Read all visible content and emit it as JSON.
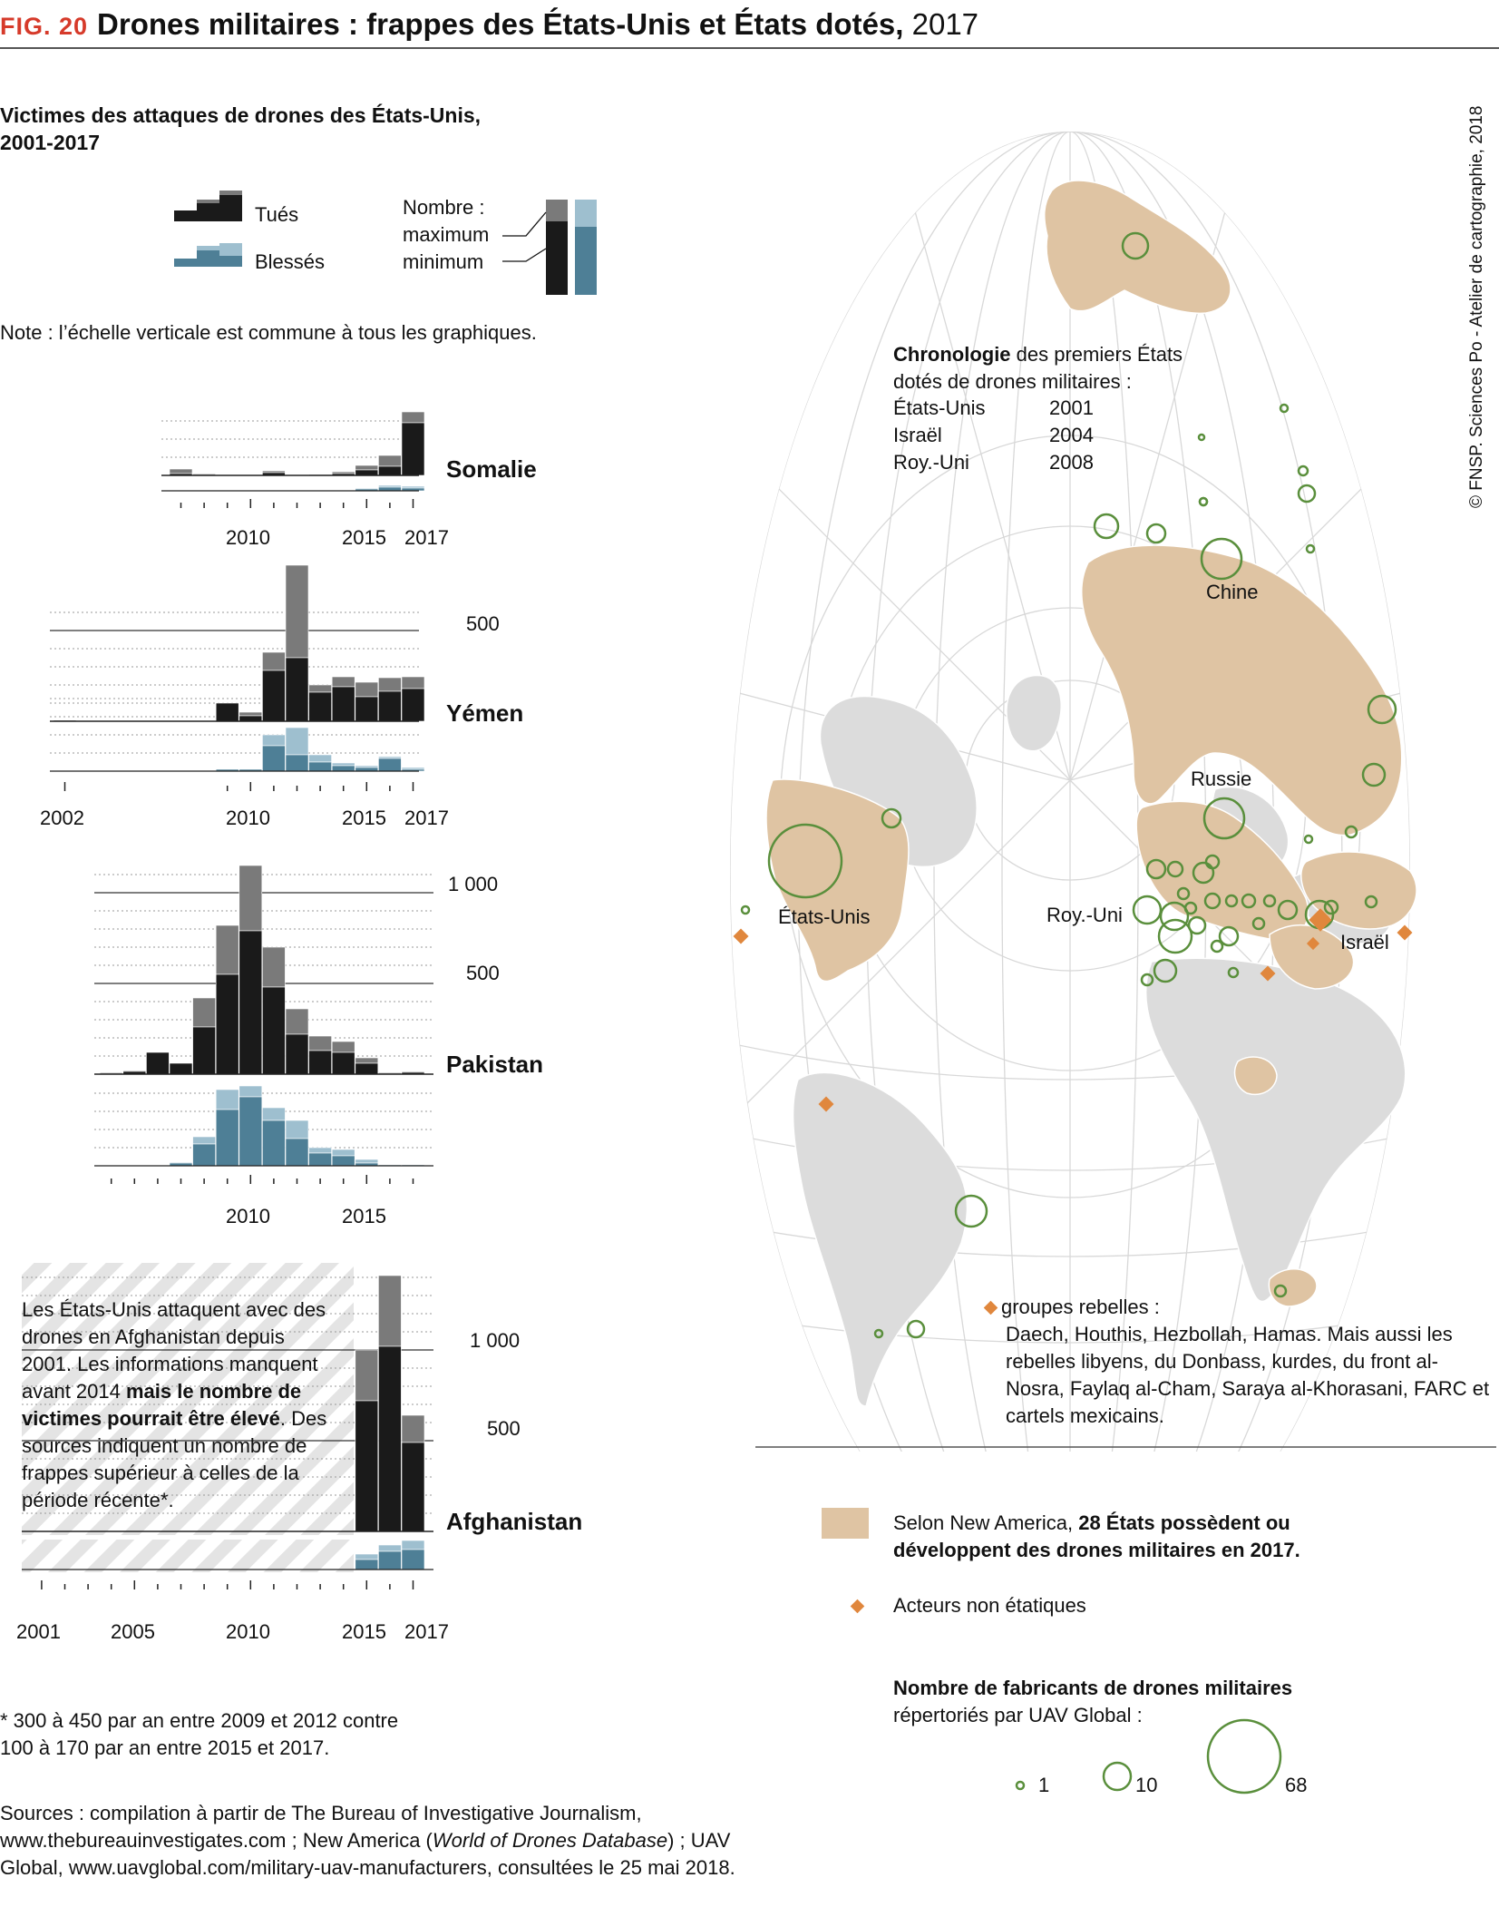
{
  "header": {
    "fig": "FIG. 20",
    "title": "Drones militaires : frappes des États-Unis et États dotés,",
    "year": "2017"
  },
  "credit": "© FNSP. Sciences Po - Atelier de cartographie, 2018",
  "left_panel": {
    "subtitle": "Victimes des attaques de drones des États-Unis, 2001-2017",
    "legend": {
      "killed": "Tués",
      "injured": "Blessés",
      "count_label": "Nombre :",
      "max_label": "maximum",
      "min_label": "minimum"
    },
    "note": "Note : l’échelle verticale est commune à tous les graphiques.",
    "afghanistan_text_1": "Les États-Unis attaquent avec des drones en Afghanistan depuis 2001. Les informations manquent avant 2014 ",
    "afghanistan_text_bold": "mais le nombre de victimes pourrait être élevé",
    "afghanistan_text_2": ". Des sources indiquent un nombre de frappes supérieur à celles de la période récente*.",
    "footnote": "* 300 à 450 par an entre 2009 et 2012 contre 100 à 170 par an entre 2015 et 2017.",
    "sources_1": "Sources : compilation à partir de The Bureau of Investigative Journalism, www.thebureauinvestigates.com ; New America (",
    "sources_italic": "World of Drones Database",
    "sources_2": ") ; UAV Global, www.uavglobal.com/military-uav-manufacturers, consultées le 25 mai 2018."
  },
  "chart_data": [
    {
      "type": "bar",
      "subtype": "stacked-range",
      "country": "Somalie",
      "x": [
        2007,
        2008,
        2009,
        2010,
        2011,
        2012,
        2013,
        2014,
        2015,
        2016,
        2017
      ],
      "killed_min": [
        10,
        5,
        0,
        0,
        15,
        0,
        0,
        10,
        30,
        50,
        290
      ],
      "killed_max": [
        35,
        10,
        0,
        0,
        25,
        0,
        5,
        20,
        55,
        110,
        350
      ],
      "injured_min": [
        0,
        0,
        0,
        0,
        0,
        0,
        0,
        0,
        10,
        20,
        15
      ],
      "injured_max": [
        0,
        0,
        0,
        0,
        0,
        0,
        0,
        0,
        15,
        30,
        25
      ],
      "tick_labels": [
        "2010",
        "2015",
        "2017"
      ]
    },
    {
      "type": "bar",
      "subtype": "stacked-range",
      "country": "Yémen",
      "x": [
        2002,
        2003,
        2004,
        2005,
        2006,
        2007,
        2008,
        2009,
        2010,
        2011,
        2012,
        2013,
        2014,
        2015,
        2016,
        2017
      ],
      "killed_min": [
        5,
        0,
        0,
        0,
        0,
        0,
        0,
        100,
        30,
        280,
        350,
        160,
        190,
        135,
        165,
        180
      ],
      "killed_max": [
        6,
        0,
        0,
        0,
        0,
        0,
        0,
        100,
        50,
        380,
        860,
        200,
        245,
        215,
        240,
        245
      ],
      "injured_min": [
        0,
        0,
        0,
        0,
        0,
        0,
        0,
        10,
        10,
        140,
        90,
        50,
        30,
        20,
        70,
        10
      ],
      "injured_max": [
        0,
        0,
        0,
        0,
        0,
        0,
        0,
        10,
        10,
        200,
        240,
        90,
        45,
        30,
        80,
        20
      ],
      "tick_labels": [
        "2002",
        "2010",
        "2015",
        "2017"
      ],
      "y_tick_labels": [
        "500"
      ]
    },
    {
      "type": "bar",
      "subtype": "stacked-range",
      "country": "Pakistan",
      "x": [
        2004,
        2005,
        2006,
        2007,
        2008,
        2009,
        2010,
        2011,
        2012,
        2013,
        2014,
        2015,
        2016,
        2017
      ],
      "killed_min": [
        5,
        15,
        120,
        60,
        260,
        550,
        790,
        480,
        220,
        130,
        120,
        60,
        5,
        10
      ],
      "killed_max": [
        10,
        20,
        120,
        60,
        420,
        820,
        1150,
        700,
        360,
        210,
        180,
        90,
        10,
        15
      ],
      "injured_min": [
        0,
        0,
        0,
        15,
        120,
        310,
        380,
        250,
        150,
        70,
        55,
        15,
        5,
        5
      ],
      "injured_max": [
        0,
        0,
        0,
        20,
        160,
        420,
        440,
        320,
        250,
        100,
        90,
        35,
        5,
        5
      ],
      "tick_labels": [
        "2010",
        "2015"
      ],
      "y_tick_labels": [
        "1 000",
        "500"
      ]
    },
    {
      "type": "bar",
      "subtype": "stacked-range",
      "country": "Afghanistan",
      "x": [
        2015,
        2016,
        2017
      ],
      "killed_min": [
        720,
        1020,
        490
      ],
      "killed_max": [
        1000,
        1410,
        640
      ],
      "injured_min": [
        55,
        100,
        110
      ],
      "injured_max": [
        85,
        135,
        160
      ],
      "tick_labels": [
        "2001",
        "2005",
        "2010",
        "2015",
        "2017"
      ],
      "y_tick_labels": [
        "1 000",
        "500"
      ]
    }
  ],
  "map": {
    "chronology_bold": "Chronologie",
    "chronology_rest": " des premiers États dotés de drones militaires :",
    "chronology": [
      {
        "country": "États-Unis",
        "year": "2001"
      },
      {
        "country": "Israël",
        "year": "2004"
      },
      {
        "country": "Roy.-Uni",
        "year": "2008"
      }
    ],
    "labels": [
      "Chine",
      "Russie",
      "États-Unis",
      "Roy.-Uni",
      "Israël"
    ],
    "rebels_head": "groupes rebelles :",
    "rebels_body": "Daech, Houthis, Hezbollah, Hamas. Mais aussi les rebelles libyens, du Donbass, kurdes, du front al-Nosra, Faylaq al-Cham, Saraya al-Khorasani, FARC et cartels mexicains.",
    "colors": {
      "owner": "#dfc4a3",
      "land": "#dcdcdc",
      "circle": "#5a8f3c",
      "rebel": "#e0873d"
    }
  },
  "legend_right": {
    "owner_text_1": "Selon New America, ",
    "owner_text_bold": "28 États possèdent ou développent des drones militaires en 2017.",
    "rebel_text": "Acteurs non étatiques",
    "makers_title": "Nombre de fabricants de drones militaires",
    "makers_sub": "répertoriés par UAV Global :",
    "sizes": [
      "1",
      "10",
      "68"
    ]
  }
}
